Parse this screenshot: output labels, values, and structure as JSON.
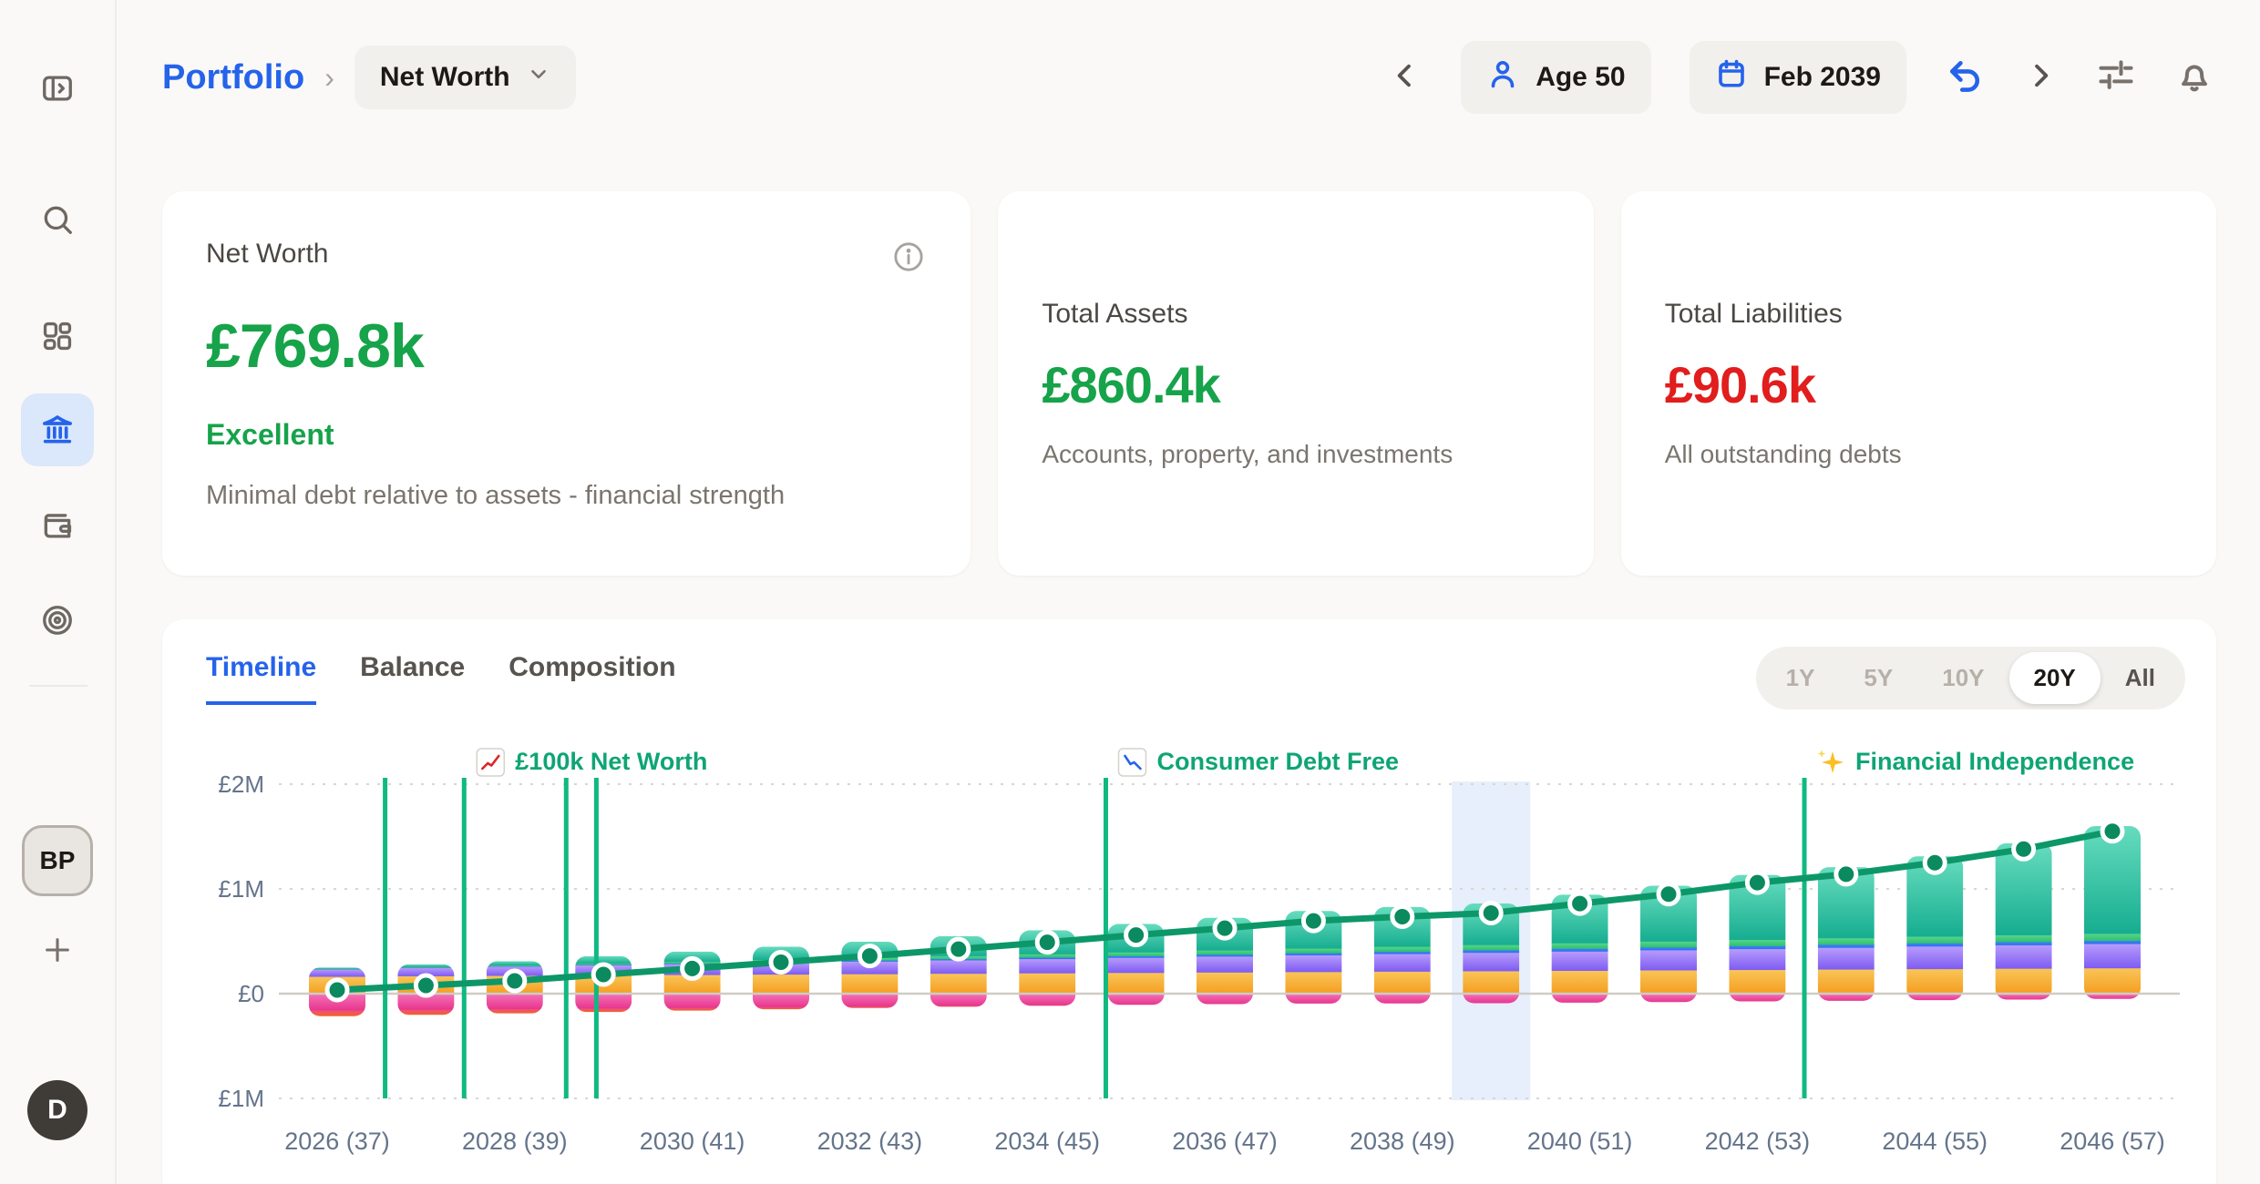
{
  "header": {
    "breadcrumb": {
      "app": "Portfolio",
      "separator": "›",
      "page": "Net Worth"
    },
    "age_button": "Age 50",
    "date_button": "Feb 2039"
  },
  "sidebar": {
    "workspace_avatar": "BP",
    "user_avatar": "D"
  },
  "cards": {
    "net_worth": {
      "title": "Net Worth",
      "value": "£769.8k",
      "status": "Excellent",
      "description": "Minimal debt relative to assets - financial strength"
    },
    "total_assets": {
      "title": "Total Assets",
      "value": "£860.4k",
      "description": "Accounts, property, and investments"
    },
    "total_liabilities": {
      "title": "Total Liabilities",
      "value": "£90.6k",
      "description": "All outstanding debts"
    }
  },
  "chart_section": {
    "tabs": [
      "Timeline",
      "Balance",
      "Composition"
    ],
    "active_tab": "Timeline",
    "ranges": [
      "1Y",
      "5Y",
      "10Y",
      "20Y",
      "All"
    ],
    "active_range": "20Y"
  },
  "colors": {
    "accent_blue": "#2563eb",
    "positive_green": "#16a34a",
    "negative_red": "#e11d1d",
    "milestone_green": "#10b981",
    "milestone_label_green": "#0ea574",
    "net_worth_line": "#0d9768",
    "current_highlight": "#dbe8fa"
  },
  "chart_data": {
    "type": "bar",
    "subtype": "stacked-bars-with-net-worth-line",
    "unit": "GBP thousands (estimated from pixels)",
    "x": [
      2026,
      2027,
      2028,
      2029,
      2030,
      2031,
      2032,
      2033,
      2034,
      2035,
      2036,
      2037,
      2038,
      2039,
      2040,
      2041,
      2042,
      2043,
      2044,
      2045,
      2046
    ],
    "x_tick_labels": [
      "2026 (37)",
      "2028 (39)",
      "2030 (41)",
      "2032 (43)",
      "2034 (45)",
      "2036 (47)",
      "2038 (49)",
      "2040 (51)",
      "2042 (53)",
      "2044 (55)",
      "2046 (57)"
    ],
    "y_axis": {
      "tick_labels": [
        "£2M",
        "£1M",
        "£0",
        "£1M"
      ],
      "tick_values_k": [
        2000,
        1000,
        0,
        -1000
      ],
      "zero_line": true,
      "grid": "dotted"
    },
    "stacked_assets": [
      {
        "name": "orange-segment",
        "color_top": "#f9c659",
        "color_bottom": "#f49d1f",
        "values": [
          165,
          170,
          174,
          178,
          182,
          186,
          190,
          194,
          198,
          202,
          206,
          210,
          214,
          218,
          222,
          226,
          230,
          234,
          238,
          242,
          246
        ]
      },
      {
        "name": "purple-segment",
        "color_top": "#b89dfc",
        "color_bottom": "#7e5bf2",
        "values": [
          70,
          80,
          88,
          96,
          104,
          112,
          120,
          128,
          136,
          144,
          152,
          160,
          168,
          176,
          184,
          192,
          200,
          208,
          216,
          224,
          232
        ]
      },
      {
        "name": "blue-segment",
        "color_top": "#3d86f7",
        "color_bottom": "#2f6ef0",
        "values": [
          2,
          3,
          4,
          5,
          6,
          8,
          10,
          12,
          14,
          16,
          18,
          20,
          22,
          24,
          26,
          27,
          28,
          29,
          30,
          30,
          30
        ]
      },
      {
        "name": "green-segment",
        "color_top": "#58d68e",
        "color_bottom": "#2fbf6e",
        "values": [
          3,
          5,
          8,
          12,
          16,
          20,
          24,
          28,
          32,
          36,
          40,
          44,
          47,
          50,
          53,
          56,
          59,
          62,
          64,
          66,
          68
        ]
      },
      {
        "name": "teal-segment",
        "color_top": "#67dcbe",
        "color_bottom": "#16ad90",
        "values": [
          10,
          22,
          36,
          67,
          94,
          123,
          153,
          188,
          225,
          268,
          309,
          356,
          377,
          393,
          461,
          529,
          617,
          675,
          764,
          874,
          1024
        ]
      }
    ],
    "stacked_liabilities": [
      {
        "name": "pink-segment",
        "color_top": "#f472b6",
        "color_bottom": "#e7338c",
        "values": [
          160,
          154,
          148,
          142,
          136,
          130,
          124,
          118,
          112,
          106,
          100,
          95,
          93,
          91,
          86,
          80,
          74,
          68,
          62,
          56,
          50
        ]
      },
      {
        "name": "red-segment",
        "color_top": "#ee4f7d",
        "color_bottom": "#f4641f",
        "values": [
          55,
          48,
          40,
          33,
          26,
          19,
          13,
          7,
          3,
          0,
          0,
          0,
          0,
          0,
          0,
          0,
          0,
          0,
          0,
          0,
          0
        ]
      }
    ],
    "net_worth_line": {
      "name": "net-worth",
      "color": "#0d9768",
      "marker_fill": "#0a8a5e",
      "values": [
        35,
        78,
        122,
        183,
        240,
        300,
        360,
        425,
        490,
        560,
        625,
        695,
        735,
        770,
        860,
        950,
        1060,
        1140,
        1250,
        1380,
        1550
      ]
    },
    "milestones": [
      {
        "year": 2026.54,
        "label": "",
        "icon": ""
      },
      {
        "year": 2027.43,
        "label": "£100k Net Worth",
        "icon": "chart-up"
      },
      {
        "year": 2028.58,
        "label": "",
        "icon": ""
      },
      {
        "year": 2028.92,
        "label": "",
        "icon": ""
      },
      {
        "year": 2034.66,
        "label": "Consumer Debt Free",
        "icon": "chart-down"
      },
      {
        "year": 2042.53,
        "label": "Financial Independence",
        "icon": "sparkles"
      }
    ],
    "current_marker": {
      "year": 2039,
      "label": "Feb 2039"
    }
  }
}
